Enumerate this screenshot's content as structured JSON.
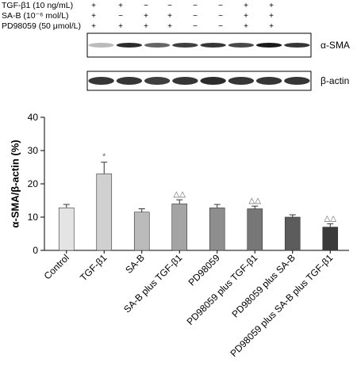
{
  "conditions": [
    {
      "label_prefix": "TGF-β1 (10 ng/mL)",
      "signs": [
        "+",
        "+",
        "−",
        "−",
        "−",
        "−",
        "+",
        "+"
      ]
    },
    {
      "label_prefix": "SA-B (10⁻⁶ mol/L)",
      "signs": [
        "+",
        "−",
        "+",
        "+",
        "−",
        "−",
        "+",
        "+"
      ]
    },
    {
      "label_prefix": "PD98059 (50 μmol/L)",
      "signs": [
        "+",
        "+",
        "+",
        "+",
        "−",
        "−",
        "+",
        "+"
      ]
    }
  ],
  "blots": [
    {
      "label": "α-SMA",
      "intensities": [
        0.15,
        0.9,
        0.6,
        0.8,
        0.85,
        0.75,
        1.0,
        0.85
      ]
    },
    {
      "label": "β-actin",
      "intensities": [
        0.85,
        0.85,
        0.8,
        0.85,
        0.9,
        0.85,
        0.85,
        0.85
      ]
    }
  ],
  "chart_data": {
    "type": "bar",
    "ylabel": "α-SMA/β-actin (%)",
    "ylim": [
      0,
      40
    ],
    "yticks": [
      0,
      10,
      20,
      30,
      40
    ],
    "categories": [
      "Control",
      "TGF-β1",
      "SA-B",
      "SA-B plus TGF-β1",
      "PD98059",
      "PD98059 plus TGF-β1",
      "PD98059 plus SA-B",
      "PD98059 plus SA-B plus TGF-β1"
    ],
    "values": [
      12.8,
      23.0,
      11.5,
      14.0,
      12.8,
      12.5,
      10.0,
      7.0
    ],
    "errors": [
      1.0,
      3.5,
      1.0,
      1.2,
      1.0,
      0.8,
      0.7,
      1.0
    ],
    "annotations": [
      "",
      "*",
      "",
      "△△",
      "",
      "△△",
      "",
      "△△"
    ],
    "colors": [
      "#e4e4e4",
      "#d0d0d0",
      "#bbbbbb",
      "#a4a4a4",
      "#8e8e8e",
      "#777777",
      "#5c5c5c",
      "#3a3a3a"
    ],
    "grid": false
  }
}
